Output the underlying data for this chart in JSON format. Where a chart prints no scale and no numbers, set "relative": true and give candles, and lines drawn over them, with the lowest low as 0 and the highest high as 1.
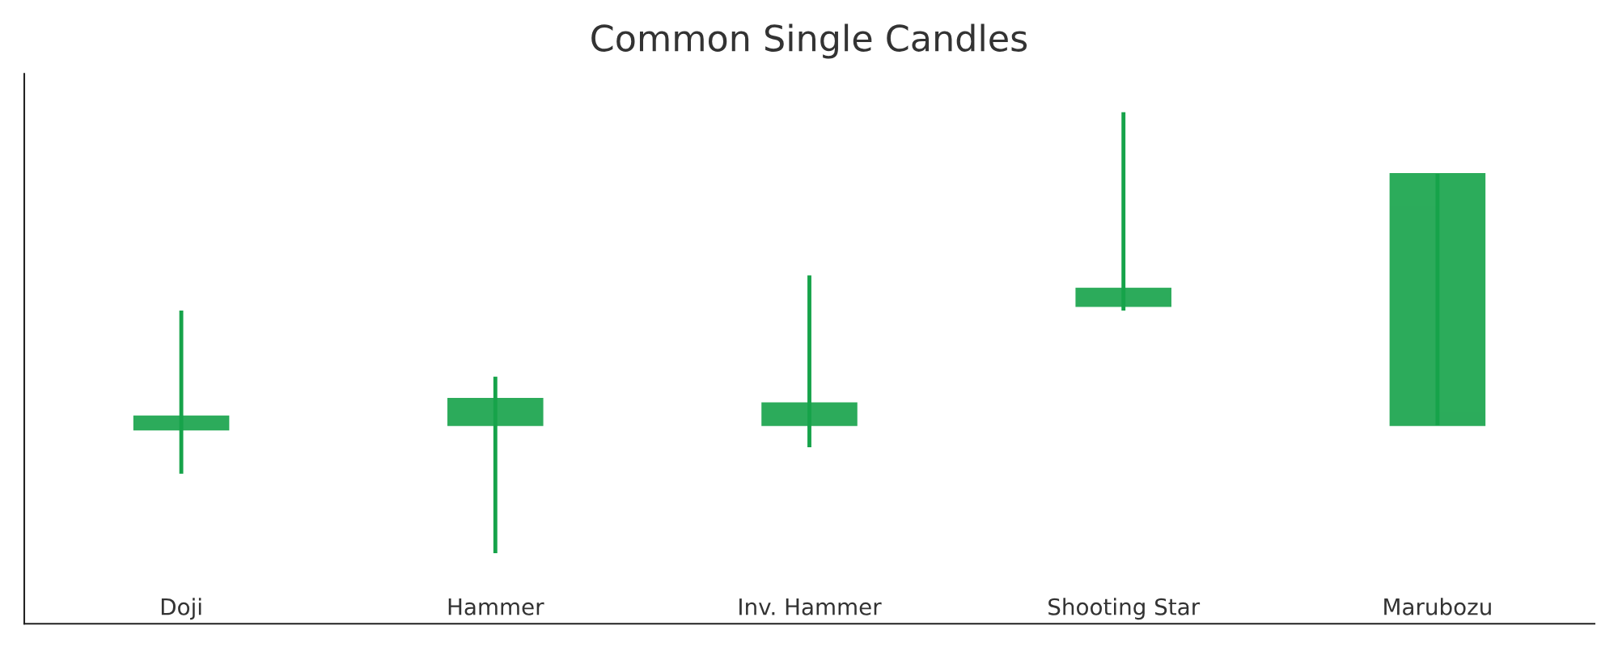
{
  "chart_data": {
    "type": "candlestick",
    "title": "Common Single Candles",
    "categories": [
      "Doji",
      "Hammer",
      "Inv. Hammer",
      "Shooting Star",
      "Marubozu"
    ],
    "ohlc": [
      [
        0.28,
        0.55,
        0.18,
        0.31
      ],
      [
        0.29,
        0.4,
        0,
        0.35
      ],
      [
        0.29,
        0.63,
        0.24,
        0.34
      ],
      [
        0.56,
        1,
        0.55,
        0.6
      ],
      [
        0.29,
        0.86,
        0.29,
        0.86
      ]
    ],
    "relative": true,
    "color": "#16a34a"
  }
}
